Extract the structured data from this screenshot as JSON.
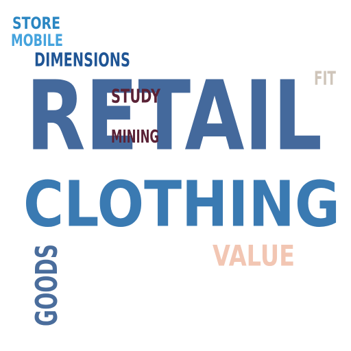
{
  "words": [
    {
      "key": "retail",
      "text": "RETAIL",
      "color": "#44699c"
    },
    {
      "key": "clothing",
      "text": "CLOTHING",
      "color": "#3a7ab2"
    },
    {
      "key": "goods",
      "text": "GOODS",
      "color": "#4a6d9c"
    },
    {
      "key": "value",
      "text": "VALUE",
      "color": "#f2c6b3"
    },
    {
      "key": "dimensions",
      "text": "DIMENSIONS",
      "color": "#1f5595"
    },
    {
      "key": "store",
      "text": "STORE",
      "color": "#2a86c2"
    },
    {
      "key": "mobile",
      "text": "MOBILE",
      "color": "#45a3dd"
    },
    {
      "key": "study",
      "text": "STUDY",
      "color": "#5a2236"
    },
    {
      "key": "mining",
      "text": "MINING",
      "color": "#5a2236"
    },
    {
      "key": "fit",
      "text": "FIT",
      "color": "#cfc5ba"
    }
  ]
}
